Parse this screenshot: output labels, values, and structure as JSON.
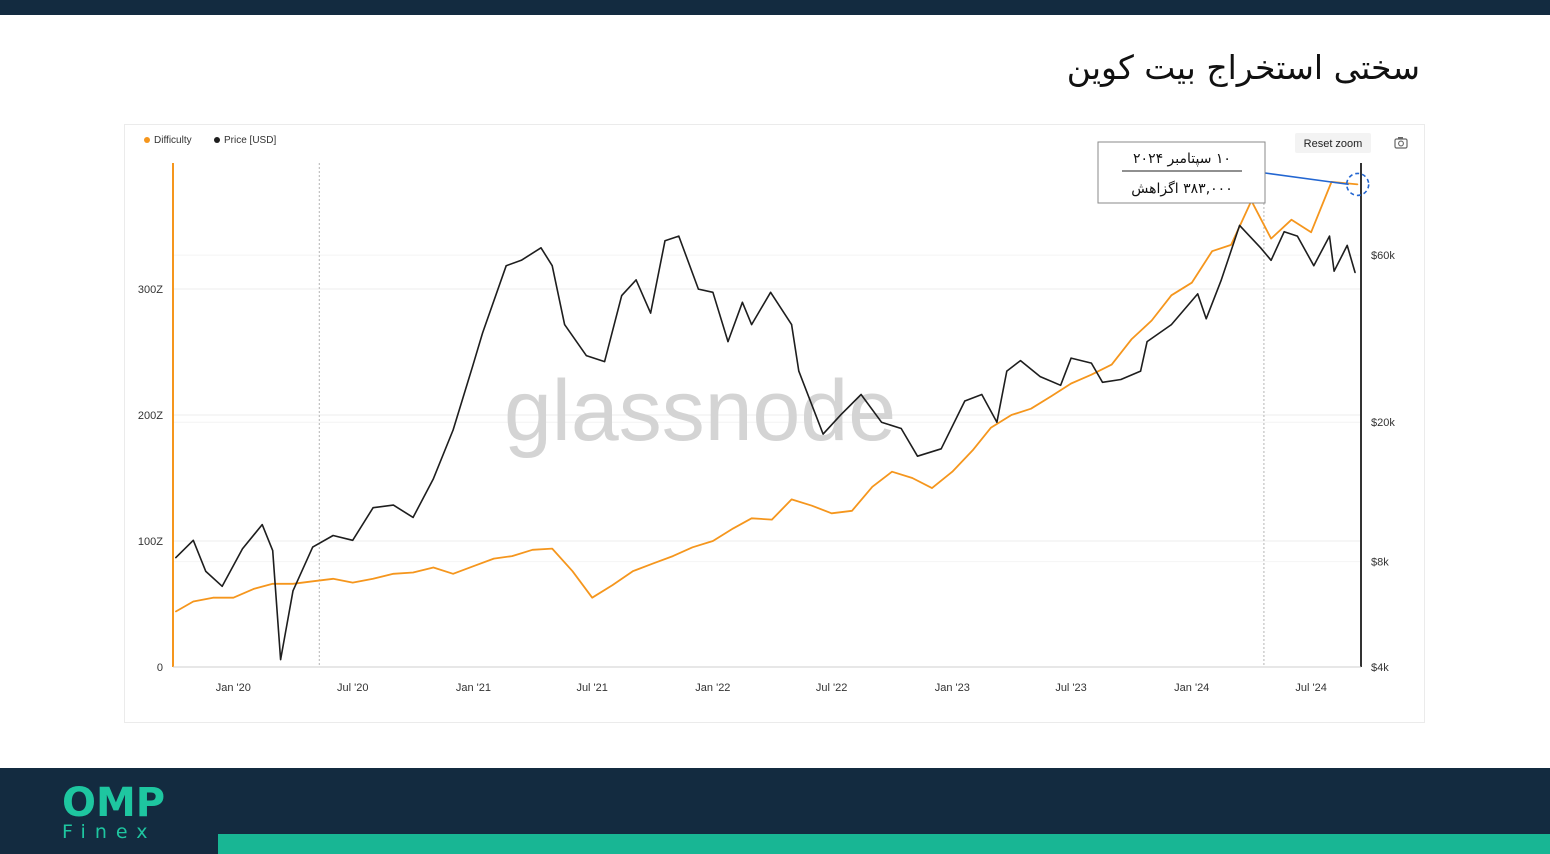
{
  "page": {
    "title": "سختی استخراج بیت کوین",
    "logo_main": "OMP",
    "logo_sub": "Finex"
  },
  "colors": {
    "brand_dark": "#132b40",
    "brand_accent": "#18b694",
    "difficulty": "#f5961d",
    "price": "#1e1e1e",
    "annotation_line": "#2366d1"
  },
  "chart_data": {
    "type": "line",
    "watermark": "glassnode",
    "legend": [
      {
        "name": "Difficulty",
        "color": "#f5961d"
      },
      {
        "name": "Price [USD]",
        "color": "#1e1e1e"
      }
    ],
    "legend_position": "top-left",
    "reset_zoom_label": "Reset zoom",
    "camera_icon": "camera-icon",
    "grid": true,
    "x_ticks": [
      "Jan '20",
      "Jul '20",
      "Jan '21",
      "Jul '21",
      "Jan '22",
      "Jul '22",
      "Jan '23",
      "Jul '23",
      "Jan '24",
      "Jul '24"
    ],
    "x_range": [
      "2019-10-01",
      "2024-09-15"
    ],
    "y_left": {
      "ticks": [
        "0",
        "100Z",
        "200Z",
        "300Z"
      ],
      "range": [
        0,
        400
      ],
      "unit": "Z"
    },
    "y_right": {
      "ticks": [
        "$4k",
        "$8k",
        "$20k",
        "$60k"
      ],
      "scale": "log",
      "range": [
        4000,
        110000
      ]
    },
    "vertical_markers": [
      "2020-05-11",
      "2024-04-20"
    ],
    "series": [
      {
        "name": "Difficulty",
        "axis": "left",
        "points": [
          [
            "2019-10-05",
            44
          ],
          [
            "2019-11-01",
            52
          ],
          [
            "2019-12-01",
            55
          ],
          [
            "2020-01-01",
            55
          ],
          [
            "2020-02-01",
            62
          ],
          [
            "2020-03-01",
            66
          ],
          [
            "2020-04-01",
            66
          ],
          [
            "2020-05-01",
            68
          ],
          [
            "2020-06-01",
            70
          ],
          [
            "2020-07-01",
            67
          ],
          [
            "2020-08-01",
            70
          ],
          [
            "2020-09-01",
            74
          ],
          [
            "2020-10-01",
            75
          ],
          [
            "2020-11-01",
            79
          ],
          [
            "2020-12-01",
            74
          ],
          [
            "2021-01-01",
            80
          ],
          [
            "2021-02-01",
            86
          ],
          [
            "2021-03-01",
            88
          ],
          [
            "2021-04-01",
            93
          ],
          [
            "2021-05-01",
            94
          ],
          [
            "2021-06-01",
            76
          ],
          [
            "2021-07-01",
            55
          ],
          [
            "2021-08-01",
            65
          ],
          [
            "2021-09-01",
            76
          ],
          [
            "2021-10-01",
            82
          ],
          [
            "2021-11-01",
            88
          ],
          [
            "2021-12-01",
            95
          ],
          [
            "2022-01-01",
            100
          ],
          [
            "2022-02-01",
            110
          ],
          [
            "2022-03-01",
            118
          ],
          [
            "2022-04-01",
            117
          ],
          [
            "2022-05-01",
            133
          ],
          [
            "2022-06-01",
            128
          ],
          [
            "2022-07-01",
            122
          ],
          [
            "2022-08-01",
            124
          ],
          [
            "2022-09-01",
            143
          ],
          [
            "2022-10-01",
            155
          ],
          [
            "2022-11-01",
            150
          ],
          [
            "2022-12-01",
            142
          ],
          [
            "2023-01-01",
            155
          ],
          [
            "2023-02-01",
            172
          ],
          [
            "2023-03-01",
            190
          ],
          [
            "2023-04-01",
            200
          ],
          [
            "2023-05-01",
            205
          ],
          [
            "2023-06-01",
            215
          ],
          [
            "2023-07-01",
            225
          ],
          [
            "2023-08-01",
            232
          ],
          [
            "2023-09-01",
            240
          ],
          [
            "2023-10-01",
            260
          ],
          [
            "2023-11-01",
            275
          ],
          [
            "2023-12-01",
            295
          ],
          [
            "2024-01-01",
            305
          ],
          [
            "2024-02-01",
            330
          ],
          [
            "2024-03-01",
            335
          ],
          [
            "2024-04-01",
            370
          ],
          [
            "2024-05-01",
            340
          ],
          [
            "2024-06-01",
            355
          ],
          [
            "2024-07-01",
            345
          ],
          [
            "2024-08-01",
            385
          ],
          [
            "2024-09-10",
            383
          ]
        ]
      },
      {
        "name": "Price [USD]",
        "axis": "right",
        "points": [
          [
            "2019-10-05",
            8200
          ],
          [
            "2019-11-01",
            9200
          ],
          [
            "2019-11-20",
            7500
          ],
          [
            "2019-12-15",
            6800
          ],
          [
            "2020-01-15",
            8700
          ],
          [
            "2020-02-14",
            10200
          ],
          [
            "2020-03-01",
            8600
          ],
          [
            "2020-03-13",
            4200
          ],
          [
            "2020-04-01",
            6600
          ],
          [
            "2020-05-01",
            8800
          ],
          [
            "2020-06-01",
            9500
          ],
          [
            "2020-07-01",
            9200
          ],
          [
            "2020-08-01",
            11400
          ],
          [
            "2020-09-01",
            11600
          ],
          [
            "2020-10-01",
            10700
          ],
          [
            "2020-11-01",
            13800
          ],
          [
            "2020-12-01",
            19000
          ],
          [
            "2020-12-31",
            29000
          ],
          [
            "2021-01-15",
            36000
          ],
          [
            "2021-02-20",
            56000
          ],
          [
            "2021-03-15",
            58000
          ],
          [
            "2021-04-14",
            63000
          ],
          [
            "2021-05-01",
            56000
          ],
          [
            "2021-05-20",
            38000
          ],
          [
            "2021-06-22",
            31000
          ],
          [
            "2021-07-20",
            29800
          ],
          [
            "2021-08-15",
            46000
          ],
          [
            "2021-09-06",
            51000
          ],
          [
            "2021-09-28",
            41000
          ],
          [
            "2021-10-20",
            66000
          ],
          [
            "2021-11-10",
            68000
          ],
          [
            "2021-12-10",
            48000
          ],
          [
            "2022-01-01",
            47000
          ],
          [
            "2022-01-24",
            34000
          ],
          [
            "2022-02-15",
            44000
          ],
          [
            "2022-03-01",
            38000
          ],
          [
            "2022-03-30",
            47000
          ],
          [
            "2022-05-01",
            38000
          ],
          [
            "2022-05-12",
            28000
          ],
          [
            "2022-06-18",
            18500
          ],
          [
            "2022-07-15",
            21000
          ],
          [
            "2022-08-15",
            24000
          ],
          [
            "2022-09-15",
            20000
          ],
          [
            "2022-10-15",
            19200
          ],
          [
            "2022-11-09",
            16000
          ],
          [
            "2022-12-15",
            16800
          ],
          [
            "2023-01-20",
            23000
          ],
          [
            "2023-02-15",
            24000
          ],
          [
            "2023-03-10",
            20000
          ],
          [
            "2023-03-25",
            28000
          ],
          [
            "2023-04-15",
            30000
          ],
          [
            "2023-05-15",
            27000
          ],
          [
            "2023-06-15",
            25500
          ],
          [
            "2023-07-01",
            30500
          ],
          [
            "2023-08-01",
            29500
          ],
          [
            "2023-08-18",
            26000
          ],
          [
            "2023-09-15",
            26500
          ],
          [
            "2023-10-15",
            28000
          ],
          [
            "2023-10-25",
            34000
          ],
          [
            "2023-12-01",
            38000
          ],
          [
            "2024-01-10",
            46500
          ],
          [
            "2024-01-23",
            39500
          ],
          [
            "2024-02-15",
            51000
          ],
          [
            "2024-03-14",
            73000
          ],
          [
            "2024-04-15",
            63000
          ],
          [
            "2024-05-01",
            58000
          ],
          [
            "2024-05-21",
            70000
          ],
          [
            "2024-06-10",
            68000
          ],
          [
            "2024-07-05",
            56000
          ],
          [
            "2024-07-29",
            68000
          ],
          [
            "2024-08-05",
            54000
          ],
          [
            "2024-08-25",
            64000
          ],
          [
            "2024-09-06",
            53500
          ]
        ]
      }
    ],
    "annotation": {
      "date": "2024-09-10",
      "line1": "۱۰ سپتامبر ۲۰۲۴",
      "line2": "۳۸۳,۰۰۰ اگزاهش"
    }
  }
}
